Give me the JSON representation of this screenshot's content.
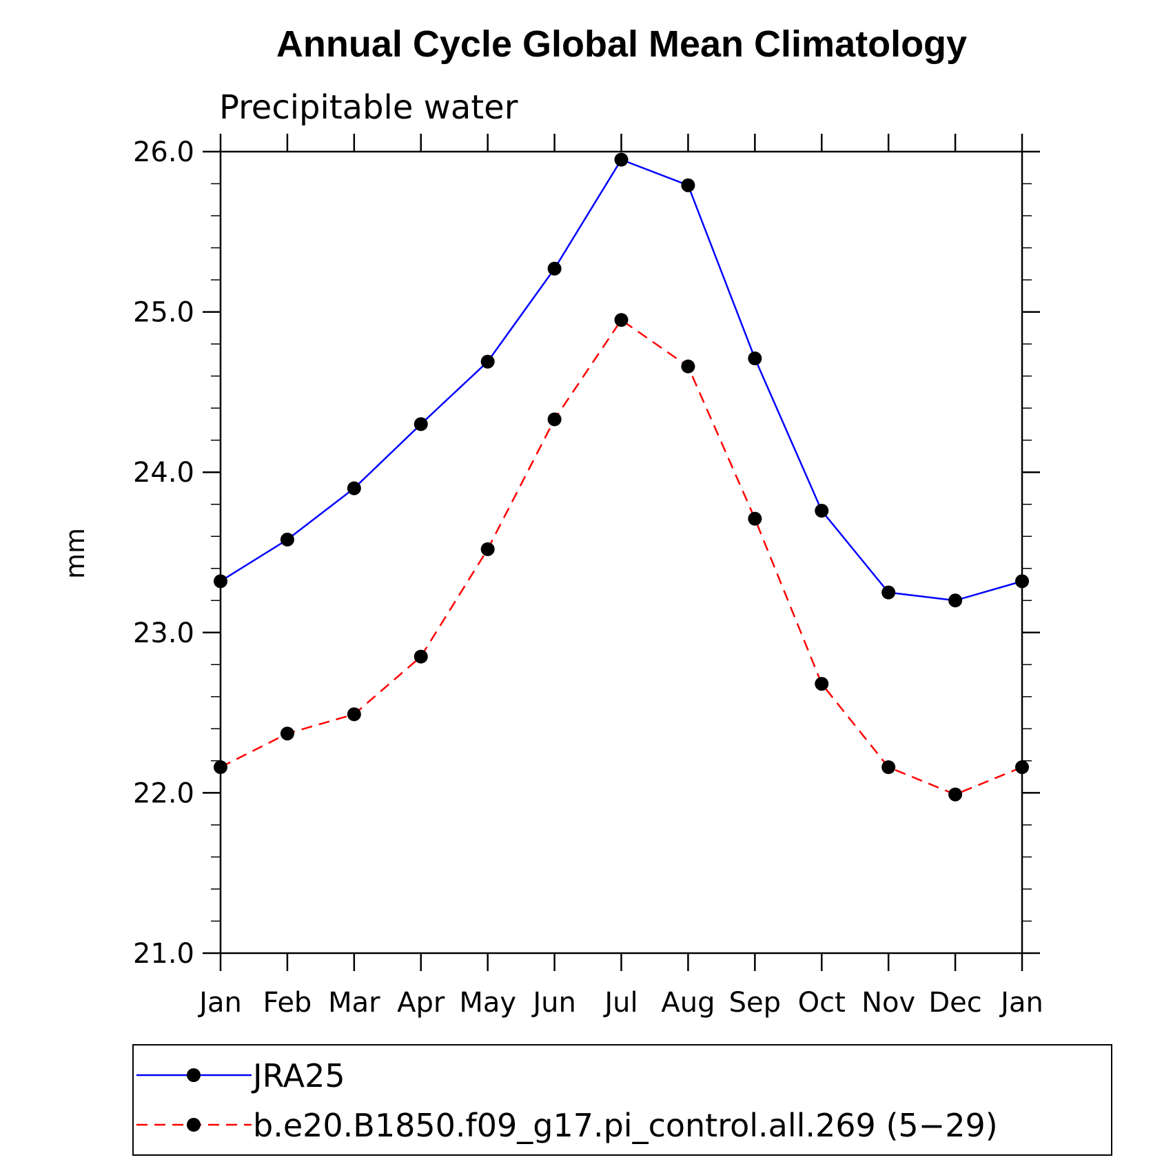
{
  "chart_data": {
    "type": "line",
    "title": "Annual Cycle Global Mean Climatology",
    "subtitle": "Precipitable water",
    "ylabel": "mm",
    "xlabel": "",
    "ylim": [
      21.0,
      26.0
    ],
    "yticks": [
      "21.0",
      "22.0",
      "23.0",
      "24.0",
      "25.0",
      "26.0"
    ],
    "categories": [
      "Jan",
      "Feb",
      "Mar",
      "Apr",
      "May",
      "Jun",
      "Jul",
      "Aug",
      "Sep",
      "Oct",
      "Nov",
      "Dec",
      "Jan"
    ],
    "series": [
      {
        "name": "JRA25",
        "color": "#0000ff",
        "dashed": false,
        "values": [
          23.32,
          23.58,
          23.9,
          24.3,
          24.69,
          25.27,
          25.95,
          25.79,
          24.71,
          23.76,
          23.25,
          23.2,
          23.32
        ]
      },
      {
        "name": "b.e20.B1850.f09_g17.pi_control.all.269 (5−29)",
        "color": "#ff0000",
        "dashed": true,
        "values": [
          22.16,
          22.37,
          22.49,
          22.85,
          23.52,
          24.33,
          24.95,
          24.66,
          23.71,
          22.68,
          22.16,
          21.99,
          22.16
        ]
      }
    ],
    "marker": "filled-circle",
    "grid": false,
    "legend_position": "bottom"
  }
}
